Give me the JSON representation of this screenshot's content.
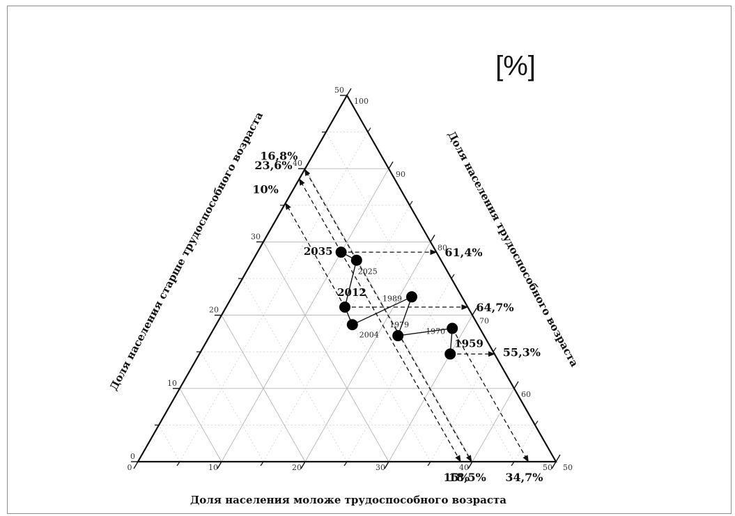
{
  "unit_label": "[%]",
  "chart_data": {
    "type": "scatter",
    "subtype": "ternary",
    "axes": {
      "bottom": {
        "label": "Доля населения моложе трудоспособного возраста",
        "ticks": [
          "0",
          "10",
          "20",
          "30",
          "40",
          "50"
        ],
        "range": [
          0,
          50
        ]
      },
      "left": {
        "label": "Доля населения старше трудоспособного возраста",
        "ticks": [
          "0",
          "10",
          "20",
          "30",
          "40",
          "50"
        ],
        "range": [
          0,
          50
        ]
      },
      "right": {
        "label": "Доля населения трудоспособного возраста",
        "ticks": [
          "50",
          "60",
          "70",
          "80",
          "90",
          "100"
        ],
        "range": [
          50,
          100
        ]
      }
    },
    "grid": true,
    "points": [
      {
        "year": "1959",
        "young": 30.0,
        "old": 14.7,
        "working": 55.3,
        "label": "1959",
        "emphasis": true
      },
      {
        "year": "1970",
        "young": 28.5,
        "old": 18.2,
        "working": 53.3,
        "label": "1970",
        "emphasis": false
      },
      {
        "year": "1979",
        "young": 22.5,
        "old": 17.2,
        "working": 60.3,
        "label": "1979",
        "emphasis": false
      },
      {
        "year": "1989",
        "young": 21.5,
        "old": 22.5,
        "working": 56.0,
        "label": "1989",
        "emphasis": false
      },
      {
        "year": "2004",
        "young": 16.3,
        "old": 18.7,
        "working": 65.0,
        "label": "2004",
        "emphasis": false
      },
      {
        "year": "2012",
        "young": 14.2,
        "old": 21.1,
        "working": 64.7,
        "label": "2012",
        "emphasis": true
      },
      {
        "year": "2025",
        "young": 12.4,
        "old": 27.5,
        "working": 60.1,
        "label": "2025",
        "emphasis": false
      },
      {
        "year": "2035",
        "young": 10.0,
        "old": 28.6,
        "working": 61.4,
        "label": "2035",
        "emphasis": true
      }
    ],
    "guides": [
      {
        "from": "2012",
        "to_axis": "right",
        "label": "64,7%"
      },
      {
        "from": "2035",
        "to_axis": "right",
        "label": "61,4%"
      },
      {
        "from": "1959",
        "to_axis": "right",
        "label": "55,3%"
      },
      {
        "from": "1970",
        "to_axis": "bottom",
        "label": "34,7%"
      },
      {
        "from": "2025",
        "to_axis": "bottom",
        "label": "18,5%"
      },
      {
        "from": "2035",
        "to_axis": "bottom",
        "label": "15%"
      },
      {
        "from": "2012",
        "to_axis": "left",
        "label": "10%"
      },
      {
        "from": "2025",
        "to_axis": "left",
        "label": "16,8%"
      },
      {
        "from": "2035",
        "to_axis": "left",
        "label": "23,6%"
      }
    ]
  }
}
